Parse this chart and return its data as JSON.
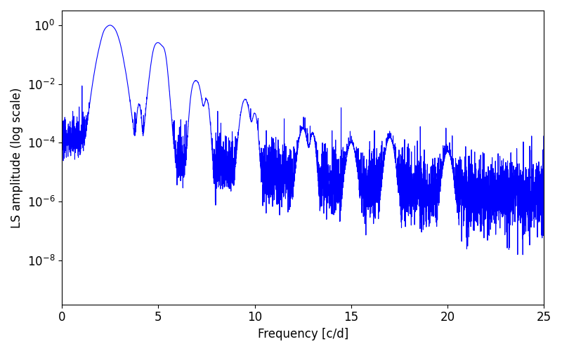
{
  "xlabel": "Frequency [c/d]",
  "ylabel": "LS amplitude (log scale)",
  "line_color": "#0000ff",
  "line_width": 0.8,
  "xlim": [
    0,
    25
  ],
  "ylim_log": [
    -9.5,
    0.5
  ],
  "yscale": "log",
  "figsize": [
    8.0,
    5.0
  ],
  "dpi": 100,
  "seed": 42,
  "n_points": 5000,
  "freq_max": 25.0,
  "background_color": "#ffffff",
  "tick_label_fontsize": 12,
  "axis_label_fontsize": 12
}
